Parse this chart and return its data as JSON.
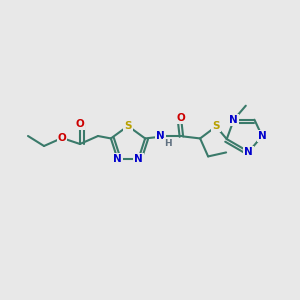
{
  "background_color": "#e8e8e8",
  "bond_color": "#3a7a6a",
  "bond_width": 1.5,
  "atom_colors": {
    "S": "#b8a000",
    "N": "#0000cc",
    "O": "#cc0000",
    "H": "#607080",
    "C": "#3a7a6a"
  },
  "font_size_atoms": 7.5,
  "fig_width": 3.0,
  "fig_height": 3.0,
  "dpi": 100
}
